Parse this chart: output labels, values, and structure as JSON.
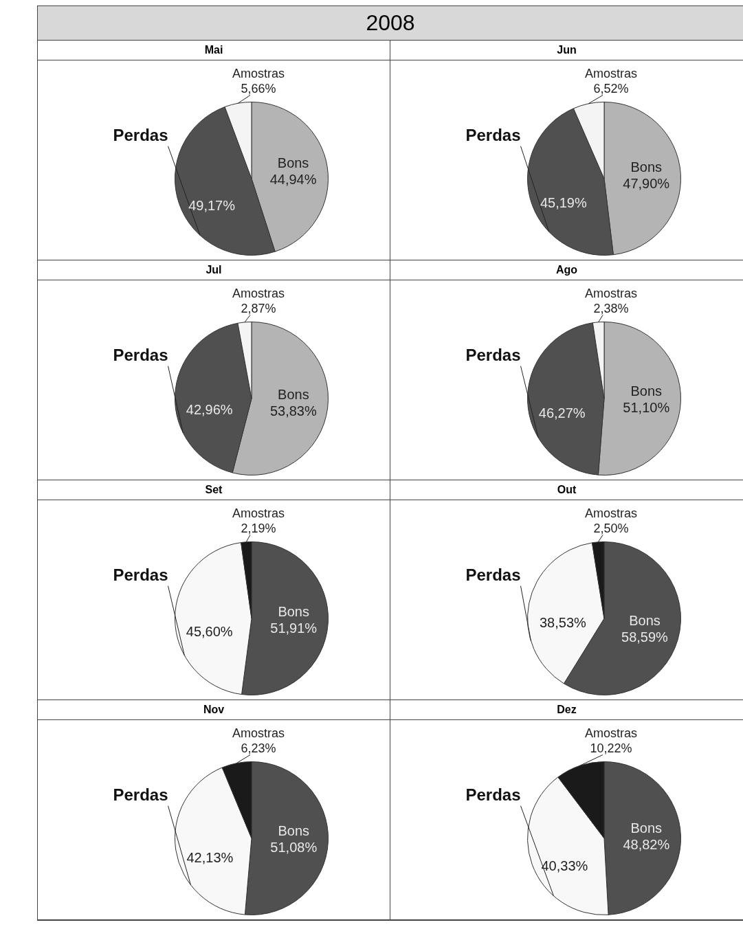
{
  "chart_data": [
    {
      "type": "pie",
      "title": "Mai",
      "annotations": [
        "2008"
      ],
      "categories": [
        "Bons",
        "Perdas",
        "Amostras"
      ],
      "values": [
        44.94,
        49.17,
        5.66
      ],
      "value_labels": [
        "44,94%",
        "49,17%",
        "5,66%"
      ],
      "colors": [
        "#b4b4b4",
        "#505050",
        "#f4f4f4"
      ]
    },
    {
      "type": "pie",
      "title": "Jun",
      "categories": [
        "Bons",
        "Perdas",
        "Amostras"
      ],
      "values": [
        47.9,
        45.19,
        6.52
      ],
      "value_labels": [
        "47,90%",
        "45,19%",
        "6,52%"
      ],
      "colors": [
        "#b4b4b4",
        "#505050",
        "#f4f4f4"
      ]
    },
    {
      "type": "pie",
      "title": "Jul",
      "categories": [
        "Bons",
        "Perdas",
        "Amostras"
      ],
      "values": [
        53.83,
        42.96,
        2.87
      ],
      "value_labels": [
        "53,83%",
        "42,96%",
        "2,87%"
      ],
      "colors": [
        "#b4b4b4",
        "#505050",
        "#f4f4f4"
      ]
    },
    {
      "type": "pie",
      "title": "Ago",
      "categories": [
        "Bons",
        "Perdas",
        "Amostras"
      ],
      "values": [
        51.1,
        46.27,
        2.38
      ],
      "value_labels": [
        "51,10%",
        "46,27%",
        "2,38%"
      ],
      "colors": [
        "#b4b4b4",
        "#505050",
        "#f4f4f4"
      ]
    },
    {
      "type": "pie",
      "title": "Set",
      "categories": [
        "Bons",
        "Perdas",
        "Amostras"
      ],
      "values": [
        51.91,
        45.6,
        2.19
      ],
      "value_labels": [
        "51,91%",
        "45,60%",
        "2,19%"
      ],
      "colors": [
        "#505050",
        "#f8f8f8",
        "#1a1a1a"
      ]
    },
    {
      "type": "pie",
      "title": "Out",
      "categories": [
        "Bons",
        "Perdas",
        "Amostras"
      ],
      "values": [
        58.59,
        38.53,
        2.5
      ],
      "value_labels": [
        "58,59%",
        "38,53%",
        "2,50%"
      ],
      "colors": [
        "#505050",
        "#f8f8f8",
        "#1a1a1a"
      ]
    },
    {
      "type": "pie",
      "title": "Nov",
      "categories": [
        "Bons",
        "Perdas",
        "Amostras"
      ],
      "values": [
        51.08,
        42.13,
        6.23
      ],
      "value_labels": [
        "51,08%",
        "42,13%",
        "6,23%"
      ],
      "colors": [
        "#505050",
        "#f8f8f8",
        "#1a1a1a"
      ]
    },
    {
      "type": "pie",
      "title": "Dez",
      "categories": [
        "Bons",
        "Perdas",
        "Amostras"
      ],
      "values": [
        48.82,
        40.33,
        10.22
      ],
      "value_labels": [
        "48,82%",
        "40,33%",
        "10,22%"
      ],
      "colors": [
        "#505050",
        "#f8f8f8",
        "#1a1a1a"
      ]
    }
  ]
}
